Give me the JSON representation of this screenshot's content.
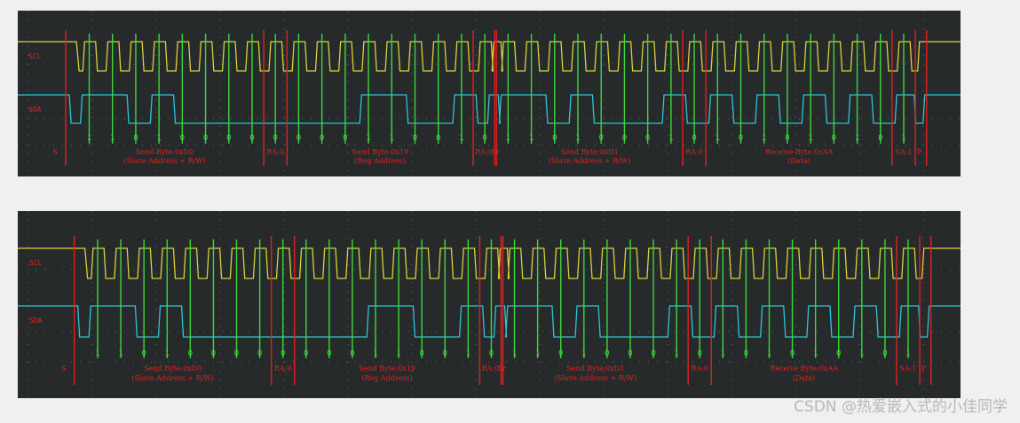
{
  "palette": {
    "background": "#262a2b",
    "grid": "#5d6466",
    "scl": "#d8d23a",
    "sda": "#2ec4d8",
    "clock_marker": "#3ed63e",
    "boundary_marker": "#e02020",
    "label": "#e02222"
  },
  "watermark": "CSDN @热爱嵌入式的小佳同学",
  "panels": [
    {
      "signals": {
        "scl": "SCL",
        "sda": "SDA"
      },
      "bits": [
        "1",
        "1",
        "0",
        "1",
        "0",
        "0",
        "0",
        "0",
        "0",
        "0",
        "0",
        "0",
        "1",
        "1",
        "0",
        "0",
        "1",
        "0",
        "1",
        "1",
        "0",
        "1",
        "0",
        "0",
        "0",
        "1",
        "0",
        "1",
        "0",
        "1",
        "0",
        "1",
        "0",
        "1",
        "0",
        "1"
      ],
      "fields": [
        {
          "line1": "S",
          "line2": ""
        },
        {
          "line1": "Send Byte:0xD0",
          "line2": "(Slave Address + R/W)"
        },
        {
          "line1": "RA:0",
          "line2": ""
        },
        {
          "line1": "Send Byte:0x19",
          "line2": "(Reg Address)"
        },
        {
          "line1": "RA:0",
          "line2": ""
        },
        {
          "line1": "Sr",
          "line2": ""
        },
        {
          "line1": "Send Byte:0xD1",
          "line2": "(Slave Address + R/W)"
        },
        {
          "line1": "RA:0",
          "line2": ""
        },
        {
          "line1": "Receive Byte:0xAA",
          "line2": "(Data)"
        },
        {
          "line1": "SA:1",
          "line2": ""
        },
        {
          "line1": "P",
          "line2": ""
        }
      ]
    },
    {
      "signals": {
        "scl": "SCL",
        "sda": "SDA"
      },
      "bits": [
        "1",
        "1",
        "0",
        "1",
        "0",
        "0",
        "0",
        "0",
        "0",
        "0",
        "0",
        "0",
        "1",
        "1",
        "0",
        "0",
        "1",
        "0",
        "1",
        "1",
        "0",
        "1",
        "0",
        "0",
        "0",
        "1",
        "0",
        "1",
        "0",
        "1",
        "0",
        "1",
        "0",
        "1",
        "0",
        "1"
      ],
      "fields": [
        {
          "line1": "S",
          "line2": ""
        },
        {
          "line1": "Send Byte:0xD0",
          "line2": "(Slave Address + R/W)"
        },
        {
          "line1": "RA:0",
          "line2": ""
        },
        {
          "line1": "Send Byte:0x19",
          "line2": "(Reg Address)"
        },
        {
          "line1": "RA:0",
          "line2": ""
        },
        {
          "line1": "Sr",
          "line2": ""
        },
        {
          "line1": "Send Byte:0xD1",
          "line2": "(Slave Address + R/W)"
        },
        {
          "line1": "RA:0",
          "line2": ""
        },
        {
          "line1": "Receive Byte:0xAA",
          "line2": "(Data)"
        },
        {
          "line1": "SA:1",
          "line2": ""
        },
        {
          "line1": "P",
          "line2": ""
        }
      ]
    }
  ]
}
